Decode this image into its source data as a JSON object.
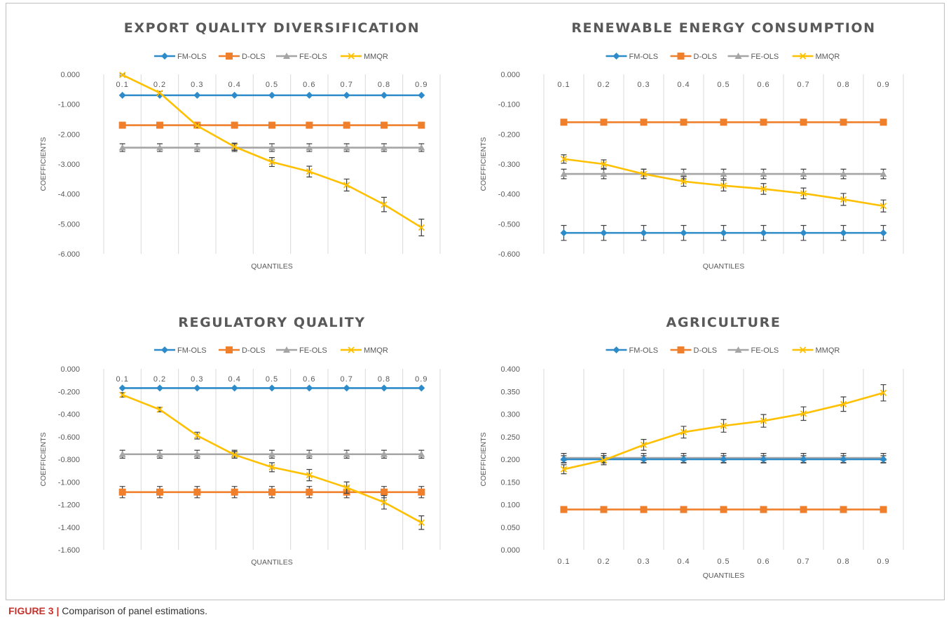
{
  "caption": {
    "label": "FIGURE 3 |",
    "text": "Comparison of panel estimations."
  },
  "colors": {
    "FM-OLS": "#2e8bc9",
    "D-OLS": "#f07f2c",
    "FE-OLS": "#a5a5a5",
    "MMQR": "#ffc000",
    "grid": "#d9d9d9",
    "text": "#595959",
    "caption_label": "#c6322c"
  },
  "chart_data": [
    {
      "type": "line",
      "title": "EXPORT QUALITY DIVERSIFICATION",
      "xlabel": "QUANTILES",
      "ylabel": "COEFFICIENTS",
      "categories": [
        "0.1",
        "0.2",
        "0.3",
        "0.4",
        "0.5",
        "0.6",
        "0.7",
        "0.8",
        "0.9"
      ],
      "y_ticks": [
        "0.000",
        "-1.000",
        "-2.000",
        "-3.000",
        "-4.000",
        "-5.000",
        "-6.000"
      ],
      "ylim": [
        -6,
        0
      ],
      "category_labels_position": "top",
      "legend_position": "top",
      "grid": "vertical",
      "series": [
        {
          "name": "FM-OLS",
          "marker": "diamond",
          "values": [
            -0.7,
            -0.7,
            -0.7,
            -0.7,
            -0.7,
            -0.7,
            -0.7,
            -0.7,
            -0.7
          ],
          "errors": []
        },
        {
          "name": "D-OLS",
          "marker": "square",
          "values": [
            -1.7,
            -1.7,
            -1.7,
            -1.7,
            -1.7,
            -1.7,
            -1.7,
            -1.7,
            -1.7
          ],
          "errors": []
        },
        {
          "name": "FE-OLS",
          "marker": "triangle",
          "values": [
            -2.45,
            -2.45,
            -2.45,
            -2.45,
            -2.45,
            -2.45,
            -2.45,
            -2.45,
            -2.45
          ],
          "errors": [
            0.13,
            0.13,
            0.13,
            0.13,
            0.13,
            0.13,
            0.13,
            0.13,
            0.13
          ]
        },
        {
          "name": "MMQR",
          "marker": "x",
          "values": [
            -0.02,
            -0.62,
            -1.72,
            -2.42,
            -2.93,
            -3.25,
            -3.7,
            -4.35,
            -5.12
          ],
          "errors": [
            0.03,
            0.05,
            0.05,
            0.12,
            0.15,
            0.18,
            0.2,
            0.24,
            0.28
          ]
        }
      ]
    },
    {
      "type": "line",
      "title": "RENEWABLE ENERGY CONSUMPTION",
      "xlabel": "QUANTILES",
      "ylabel": "COEFFICIENTS",
      "categories": [
        "0.1",
        "0.2",
        "0.3",
        "0.4",
        "0.5",
        "0.6",
        "0.7",
        "0.8",
        "0.9"
      ],
      "y_ticks": [
        "0.000",
        "-0.100",
        "-0.200",
        "-0.300",
        "-0.400",
        "-0.500",
        "-0.600"
      ],
      "ylim": [
        -0.6,
        0
      ],
      "category_labels_position": "top",
      "legend_position": "top",
      "grid": "vertical",
      "series": [
        {
          "name": "FM-OLS",
          "marker": "diamond",
          "values": [
            -0.53,
            -0.53,
            -0.53,
            -0.53,
            -0.53,
            -0.53,
            -0.53,
            -0.53,
            -0.53
          ],
          "errors": [
            0.025,
            0.025,
            0.025,
            0.025,
            0.025,
            0.025,
            0.025,
            0.025,
            0.025
          ]
        },
        {
          "name": "D-OLS",
          "marker": "square",
          "values": [
            -0.16,
            -0.16,
            -0.16,
            -0.16,
            -0.16,
            -0.16,
            -0.16,
            -0.16,
            -0.16
          ],
          "errors": []
        },
        {
          "name": "FE-OLS",
          "marker": "triangle",
          "values": [
            -0.333,
            -0.333,
            -0.333,
            -0.333,
            -0.333,
            -0.333,
            -0.333,
            -0.333,
            -0.333
          ],
          "errors": [
            0.016,
            0.016,
            0.016,
            0.016,
            0.016,
            0.016,
            0.016,
            0.016,
            0.016
          ]
        },
        {
          "name": "MMQR",
          "marker": "x",
          "values": [
            -0.283,
            -0.3,
            -0.333,
            -0.358,
            -0.372,
            -0.383,
            -0.398,
            -0.418,
            -0.44
          ],
          "errors": [
            0.014,
            0.014,
            0.016,
            0.016,
            0.018,
            0.018,
            0.018,
            0.02,
            0.02
          ]
        }
      ]
    },
    {
      "type": "line",
      "title": "REGULATORY QUALITY",
      "xlabel": "QUANTILES",
      "ylabel": "COEFFICIENTS",
      "categories": [
        "0.1",
        "0.2",
        "0.3",
        "0.4",
        "0.5",
        "0.6",
        "0.7",
        "0.8",
        "0.9"
      ],
      "y_ticks": [
        "0.000",
        "-0.200",
        "-0.400",
        "-0.600",
        "-0.800",
        "-1.000",
        "-1.200",
        "-1.400",
        "-1.600"
      ],
      "ylim": [
        -1.6,
        0
      ],
      "category_labels_position": "top",
      "legend_position": "top",
      "grid": "vertical",
      "series": [
        {
          "name": "FM-OLS",
          "marker": "diamond",
          "values": [
            -0.17,
            -0.17,
            -0.17,
            -0.17,
            -0.17,
            -0.17,
            -0.17,
            -0.17,
            -0.17
          ],
          "errors": []
        },
        {
          "name": "D-OLS",
          "marker": "square",
          "values": [
            -1.09,
            -1.09,
            -1.09,
            -1.09,
            -1.09,
            -1.09,
            -1.09,
            -1.09,
            -1.09
          ],
          "errors": [
            0.05,
            0.05,
            0.05,
            0.05,
            0.05,
            0.05,
            0.05,
            0.05,
            0.05
          ]
        },
        {
          "name": "FE-OLS",
          "marker": "triangle",
          "values": [
            -0.755,
            -0.755,
            -0.755,
            -0.755,
            -0.755,
            -0.755,
            -0.755,
            -0.755,
            -0.755
          ],
          "errors": [
            0.035,
            0.035,
            0.035,
            0.035,
            0.035,
            0.035,
            0.035,
            0.035,
            0.035
          ]
        },
        {
          "name": "MMQR",
          "marker": "x",
          "values": [
            -0.23,
            -0.36,
            -0.59,
            -0.76,
            -0.87,
            -0.94,
            -1.05,
            -1.18,
            -1.36
          ],
          "errors": [
            0.02,
            0.02,
            0.03,
            0.03,
            0.04,
            0.05,
            0.05,
            0.06,
            0.06
          ]
        }
      ]
    },
    {
      "type": "line",
      "title": "AGRICULTURE",
      "xlabel": "QUANTILES",
      "ylabel": "COEFFICIENTS",
      "categories": [
        "0.1",
        "0.2",
        "0.3",
        "0.4",
        "0.5",
        "0.6",
        "0.7",
        "0.8",
        "0.9"
      ],
      "y_ticks": [
        "0.400",
        "0.350",
        "0.300",
        "0.250",
        "0.200",
        "0.150",
        "0.100",
        "0.050",
        "0.000"
      ],
      "ylim": [
        0,
        0.4
      ],
      "category_labels_position": "bottom",
      "legend_position": "top",
      "grid": "vertical",
      "series": [
        {
          "name": "FM-OLS",
          "marker": "diamond",
          "values": [
            0.2,
            0.2,
            0.2,
            0.2,
            0.2,
            0.2,
            0.2,
            0.2,
            0.2
          ],
          "errors": [
            0.008,
            0.008,
            0.008,
            0.008,
            0.008,
            0.008,
            0.008,
            0.008,
            0.008
          ]
        },
        {
          "name": "D-OLS",
          "marker": "square",
          "values": [
            0.089,
            0.089,
            0.089,
            0.089,
            0.089,
            0.089,
            0.089,
            0.089,
            0.089
          ],
          "errors": []
        },
        {
          "name": "FE-OLS",
          "marker": "triangle",
          "values": [
            0.203,
            0.203,
            0.203,
            0.203,
            0.203,
            0.203,
            0.203,
            0.203,
            0.203
          ],
          "errors": [
            0.01,
            0.01,
            0.01,
            0.01,
            0.01,
            0.01,
            0.01,
            0.01,
            0.01
          ]
        },
        {
          "name": "MMQR",
          "marker": "x",
          "values": [
            0.178,
            0.198,
            0.232,
            0.26,
            0.274,
            0.285,
            0.301,
            0.322,
            0.347
          ],
          "errors": [
            0.01,
            0.01,
            0.012,
            0.013,
            0.014,
            0.014,
            0.015,
            0.016,
            0.018
          ]
        }
      ]
    }
  ]
}
